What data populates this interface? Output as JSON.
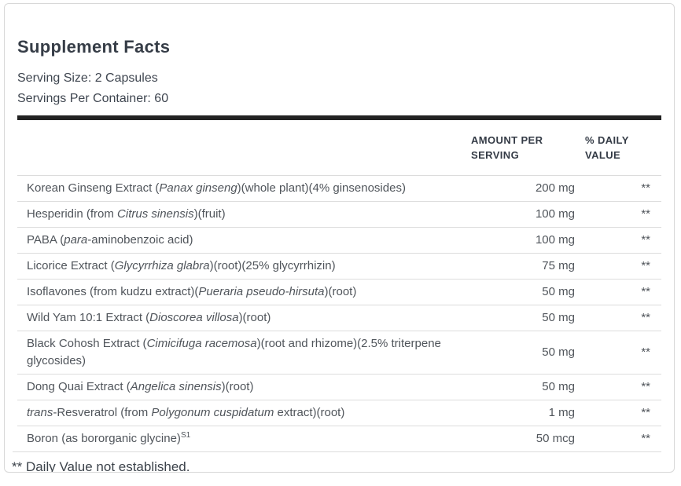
{
  "panel": {
    "title": "Supplement Facts",
    "serving_size": "Serving Size: 2 Capsules",
    "servings_per_container": "Servings Per Container: 60",
    "columns": {
      "amount": "AMOUNT PER SERVING",
      "daily_value": "% DAILY VALUE"
    },
    "rows": [
      {
        "name": [
          {
            "text": "Korean Ginseng Extract (",
            "style": "normal"
          },
          {
            "text": "Panax ginseng",
            "style": "italic"
          },
          {
            "text": ")(whole plant)(4% ginsenosides)",
            "style": "normal"
          }
        ],
        "amount": "200 mg",
        "daily_value": "**"
      },
      {
        "name": [
          {
            "text": "Hesperidin (from ",
            "style": "normal"
          },
          {
            "text": "Citrus sinensis",
            "style": "italic"
          },
          {
            "text": ")(fruit)",
            "style": "normal"
          }
        ],
        "amount": "100 mg",
        "daily_value": "**"
      },
      {
        "name": [
          {
            "text": "PABA (",
            "style": "normal"
          },
          {
            "text": "para",
            "style": "italic"
          },
          {
            "text": "-aminobenzoic acid)",
            "style": "normal"
          }
        ],
        "amount": "100 mg",
        "daily_value": "**"
      },
      {
        "name": [
          {
            "text": "Licorice Extract (",
            "style": "normal"
          },
          {
            "text": "Glycyrrhiza glabra",
            "style": "italic"
          },
          {
            "text": ")(root)(25% glycyrrhizin)",
            "style": "normal"
          }
        ],
        "amount": "75 mg",
        "daily_value": "**"
      },
      {
        "name": [
          {
            "text": "Isoflavones (from kudzu extract)(",
            "style": "normal"
          },
          {
            "text": "Pueraria pseudo-hirsuta",
            "style": "italic"
          },
          {
            "text": ")(root)",
            "style": "normal"
          }
        ],
        "amount": "50 mg",
        "daily_value": "**"
      },
      {
        "name": [
          {
            "text": "Wild Yam 10:1 Extract (",
            "style": "normal"
          },
          {
            "text": "Dioscorea villosa",
            "style": "italic"
          },
          {
            "text": ")(root)",
            "style": "normal"
          }
        ],
        "amount": "50 mg",
        "daily_value": "**"
      },
      {
        "name": [
          {
            "text": "Black Cohosh Extract (",
            "style": "normal"
          },
          {
            "text": "Cimicifuga racemosa",
            "style": "italic"
          },
          {
            "text": ")(root and rhizome)(2.5% triterpene glycosides)",
            "style": "normal"
          }
        ],
        "amount": "50 mg",
        "daily_value": "**"
      },
      {
        "name": [
          {
            "text": "Dong Quai Extract (",
            "style": "normal"
          },
          {
            "text": "Angelica sinensis",
            "style": "italic"
          },
          {
            "text": ")(root)",
            "style": "normal"
          }
        ],
        "amount": "50 mg",
        "daily_value": "**"
      },
      {
        "name": [
          {
            "text": "trans",
            "style": "italic"
          },
          {
            "text": "-Resveratrol (from ",
            "style": "normal"
          },
          {
            "text": "Polygonum cuspidatum",
            "style": "italic"
          },
          {
            "text": " extract)(root)",
            "style": "normal"
          }
        ],
        "amount": "1 mg",
        "daily_value": "**"
      },
      {
        "name": [
          {
            "text": "Boron (as bororganic glycine)",
            "style": "normal"
          },
          {
            "text": "S1",
            "style": "sup"
          }
        ],
        "amount": "50 mcg",
        "daily_value": "**"
      }
    ],
    "footnote": "** Daily Value not established."
  },
  "colors": {
    "card_border": "#d8d8d8",
    "heavy_divider": "#222222",
    "row_divider": "#dcdcdc",
    "title_text": "#363d47",
    "body_text": "#50555b"
  }
}
